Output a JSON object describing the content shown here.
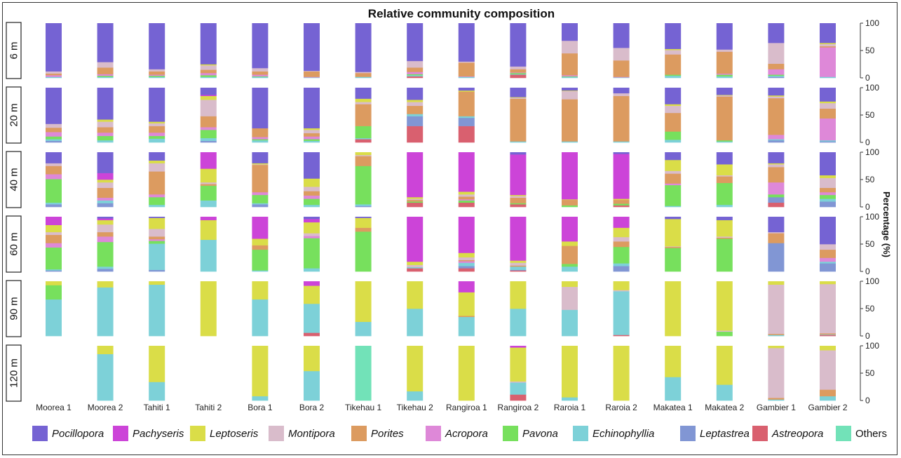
{
  "chart_data": {
    "type": "bar",
    "stacked": true,
    "title": "Relative community composition",
    "ylabel": "Percentage (%)",
    "ylim": [
      0,
      100
    ],
    "yticks": [
      "100",
      "50",
      "0"
    ],
    "legend_position": "bottom",
    "categories": [
      "Moorea 1",
      "Moorea 2",
      "Tahiti 1",
      "Tahiti 2",
      "Bora 1",
      "Bora 2",
      "Tikehau 1",
      "Tikehau 2",
      "Rangiroa 1",
      "Rangiroa 2",
      "Raroia 1",
      "Raroia 2",
      "Makatea 1",
      "Makatea 2",
      "Gambier 1",
      "Gambier 2"
    ],
    "depths": [
      "6 m",
      "20 m",
      "40 m",
      "60 m",
      "90 m",
      "120 m"
    ],
    "stack_order": [
      "Others",
      "Astreopora",
      "Leptastrea",
      "Echinophyllia",
      "Pavona",
      "Acropora",
      "Porites",
      "Montipora",
      "Leptoseris",
      "Pachyseris",
      "Pocillopora"
    ],
    "taxa": [
      {
        "name": "Pocillopora",
        "color": "#7563d3"
      },
      {
        "name": "Pachyseris",
        "color": "#cc44d8"
      },
      {
        "name": "Leptoseris",
        "color": "#dadd48"
      },
      {
        "name": "Montipora",
        "color": "#d9bccb"
      },
      {
        "name": "Porites",
        "color": "#dc9b60"
      },
      {
        "name": "Acropora",
        "color": "#de88d8"
      },
      {
        "name": "Pavona",
        "color": "#77e05d"
      },
      {
        "name": "Echinophyllia",
        "color": "#7dd1d8"
      },
      {
        "name": "Leptastrea",
        "color": "#8196d4"
      },
      {
        "name": "Astreopora",
        "color": "#d9606f"
      },
      {
        "name": "Others",
        "color": "#72e2b8"
      }
    ],
    "data": [
      [
        {
          "Pocillopora": 88,
          "Montipora": 4,
          "Porites": 3,
          "Acropora": 3,
          "Echinophyllia": 2
        },
        {
          "Pocillopora": 71,
          "Montipora": 10,
          "Porites": 12,
          "Acropora": 3,
          "Pavona": 2,
          "Echinophyllia": 2
        },
        {
          "Pocillopora": 84,
          "Montipora": 4,
          "Porites": 6,
          "Acropora": 2,
          "Pavona": 2,
          "Echinophyllia": 2
        },
        {
          "Pocillopora": 75,
          "Leptoseris": 2,
          "Montipora": 8,
          "Porites": 6,
          "Acropora": 4,
          "Pavona": 3,
          "Echinophyllia": 2
        },
        {
          "Pocillopora": 82,
          "Montipora": 6,
          "Porites": 6,
          "Acropora": 3,
          "Pavona": 1,
          "Echinophyllia": 2
        },
        {
          "Pocillopora": 87,
          "Montipora": 1,
          "Porites": 10,
          "Acropora": 1,
          "Echinophyllia": 1
        },
        {
          "Pocillopora": 89,
          "Montipora": 2,
          "Porites": 7,
          "Echinophyllia": 2
        },
        {
          "Pocillopora": 69,
          "Montipora": 12,
          "Porites": 8,
          "Acropora": 4,
          "Pavona": 2,
          "Echinophyllia": 2,
          "Astreopora": 3
        },
        {
          "Pocillopora": 70,
          "Montipora": 2,
          "Porites": 25,
          "Acropora": 1,
          "Echinophyllia": 2
        },
        {
          "Pocillopora": 79,
          "Montipora": 5,
          "Porites": 6,
          "Acropora": 1,
          "Pavona": 2,
          "Echinophyllia": 1,
          "Astreopora": 6
        },
        {
          "Pocillopora": 32,
          "Montipora": 23,
          "Porites": 40,
          "Acropora": 2,
          "Pavona": 1,
          "Echinophyllia": 2
        },
        {
          "Pocillopora": 45,
          "Montipora": 23,
          "Porites": 30,
          "Acropora": 1,
          "Echinophyllia": 1
        },
        {
          "Pocillopora": 47,
          "Leptoseris": 2,
          "Montipora": 8,
          "Porites": 37,
          "Pavona": 2,
          "Echinophyllia": 4
        },
        {
          "Pocillopora": 48,
          "Montipora": 4,
          "Porites": 40,
          "Acropora": 2,
          "Pavona": 3,
          "Echinophyllia": 3
        },
        {
          "Pocillopora": 36,
          "Montipora": 38,
          "Porites": 10,
          "Acropora": 10,
          "Pavona": 2,
          "Echinophyllia": 2,
          "Leptastrea": 2
        },
        {
          "Pocillopora": 36,
          "Leptoseris": 2,
          "Montipora": 4,
          "Porites": 2,
          "Acropora": 54,
          "Echinophyllia": 2
        }
      ],
      [
        {
          "Pocillopora": 66,
          "Montipora": 7,
          "Porites": 8,
          "Acropora": 8,
          "Pavona": 5,
          "Echinophyllia": 3,
          "Leptastrea": 3
        },
        {
          "Pocillopora": 58,
          "Leptoseris": 4,
          "Montipora": 10,
          "Porites": 10,
          "Acropora": 6,
          "Pavona": 8,
          "Echinophyllia": 4
        },
        {
          "Pocillopora": 62,
          "Leptoseris": 3,
          "Montipora": 5,
          "Porites": 12,
          "Acropora": 6,
          "Pavona": 5,
          "Echinophyllia": 7
        },
        {
          "Pocillopora": 13,
          "Pachyseris": 2,
          "Leptoseris": 7,
          "Montipora": 30,
          "Porites": 20,
          "Acropora": 5,
          "Pavona": 15,
          "Echinophyllia": 5,
          "Leptastrea": 3
        },
        {
          "Pocillopora": 74,
          "Porites": 16,
          "Acropora": 4,
          "Pavona": 2,
          "Echinophyllia": 4
        },
        {
          "Pocillopora": 74,
          "Leptoseris": 3,
          "Montipora": 6,
          "Porites": 6,
          "Acropora": 5,
          "Pavona": 3,
          "Echinophyllia": 3
        },
        {
          "Pocillopora": 20,
          "Leptoseris": 6,
          "Montipora": 4,
          "Porites": 40,
          "Pavona": 22,
          "Echinophyllia": 2,
          "Astreopora": 6
        },
        {
          "Pocillopora": 22,
          "Leptoseris": 4,
          "Montipora": 7,
          "Porites": 15,
          "Echinophyllia": 4,
          "Leptastrea": 18,
          "Astreopora": 30
        },
        {
          "Pocillopora": 5,
          "Leptoseris": 2,
          "Porites": 45,
          "Echinophyllia": 3,
          "Leptastrea": 15,
          "Astreopora": 30
        },
        {
          "Pocillopora": 17,
          "Leptoseris": 1,
          "Montipora": 2,
          "Porites": 78,
          "Echinophyllia": 2
        },
        {
          "Pocillopora": 5,
          "Leptoseris": 1,
          "Montipora": 15,
          "Porites": 77,
          "Echinophyllia": 2
        },
        {
          "Pocillopora": 10,
          "Montipora": 5,
          "Porites": 83,
          "Echinophyllia": 2
        },
        {
          "Pocillopora": 30,
          "Leptoseris": 3,
          "Montipora": 13,
          "Porites": 34,
          "Pavona": 15,
          "Echinophyllia": 5
        },
        {
          "Pocillopora": 13,
          "Leptoseris": 1,
          "Montipora": 2,
          "Porites": 80,
          "Pavona": 2,
          "Echinophyllia": 2
        },
        {
          "Pocillopora": 14,
          "Leptoseris": 2,
          "Montipora": 3,
          "Porites": 67,
          "Acropora": 8,
          "Echinophyllia": 2,
          "Leptastrea": 4
        },
        {
          "Pocillopora": 25,
          "Leptoseris": 3,
          "Montipora": 10,
          "Porites": 18,
          "Acropora": 40,
          "Echinophyllia": 2,
          "Leptastrea": 2
        }
      ],
      [
        {
          "Pocillopora": 20,
          "Montipora": 5,
          "Porites": 15,
          "Acropora": 9,
          "Pavona": 43,
          "Echinophyllia": 3,
          "Leptastrea": 5
        },
        {
          "Pocillopora": 38,
          "Pachyseris": 12,
          "Leptoseris": 5,
          "Montipora": 10,
          "Porites": 18,
          "Acropora": 5,
          "Echinophyllia": 5,
          "Leptastrea": 7
        },
        {
          "Pocillopora": 15,
          "Leptoseris": 5,
          "Montipora": 15,
          "Porites": 42,
          "Acropora": 5,
          "Pavona": 14,
          "Echinophyllia": 4
        },
        {
          "Pachyseris": 30,
          "Leptoseris": 25,
          "Montipora": 3,
          "Porites": 3,
          "Pavona": 27,
          "Echinophyllia": 12
        },
        {
          "Pocillopora": 20,
          "Leptoseris": 2,
          "Montipora": 1,
          "Porites": 50,
          "Acropora": 5,
          "Pavona": 15,
          "Echinophyllia": 2,
          "Leptastrea": 5
        },
        {
          "Pocillopora": 48,
          "Leptoseris": 15,
          "Montipora": 8,
          "Porites": 8,
          "Acropora": 6,
          "Pavona": 11,
          "Echinophyllia": 4
        },
        {
          "Leptoseris": 5,
          "Montipora": 2,
          "Porites": 18,
          "Pavona": 70,
          "Echinophyllia": 3,
          "Leptastrea": 2
        },
        {
          "Pachyseris": 82,
          "Leptoseris": 3,
          "Montipora": 2,
          "Porites": 3,
          "Pavona": 2,
          "Astreopora": 8
        },
        {
          "Pachyseris": 72,
          "Leptoseris": 5,
          "Montipora": 4,
          "Porites": 5,
          "Acropora": 2,
          "Pavona": 4,
          "Astreopora": 8
        },
        {
          "Pocillopora": 4,
          "Pachyseris": 74,
          "Leptoseris": 2,
          "Montipora": 3,
          "Porites": 10,
          "Pavona": 2,
          "Astreopora": 5
        },
        {
          "Pachyseris": 86,
          "Leptoseris": 1,
          "Porites": 10,
          "Pavona": 3
        },
        {
          "Pocillopora": 3,
          "Pachyseris": 82,
          "Leptoseris": 2,
          "Porites": 7,
          "Pavona": 3,
          "Astreopora": 3
        },
        {
          "Pocillopora": 14,
          "Leptoseris": 20,
          "Montipora": 5,
          "Porites": 18,
          "Acropora": 3,
          "Pavona": 38,
          "Echinophyllia": 2
        },
        {
          "Pocillopora": 22,
          "Leptoseris": 20,
          "Montipora": 2,
          "Porites": 12,
          "Pavona": 40,
          "Echinophyllia": 4
        },
        {
          "Pocillopora": 20,
          "Leptoseris": 2,
          "Montipora": 5,
          "Porites": 28,
          "Acropora": 22,
          "Pavona": 5,
          "Leptastrea": 10,
          "Astreopora": 8
        },
        {
          "Pocillopora": 42,
          "Leptoseris": 5,
          "Montipora": 18,
          "Porites": 8,
          "Acropora": 5,
          "Pavona": 7,
          "Echinophyllia": 5,
          "Leptastrea": 10
        }
      ],
      [
        {
          "Pachyseris": 15,
          "Leptoseris": 13,
          "Montipora": 5,
          "Porites": 15,
          "Acropora": 8,
          "Pavona": 40,
          "Echinophyllia": 2,
          "Leptastrea": 2
        },
        {
          "Pocillopora": 3,
          "Pachyseris": 3,
          "Leptoseris": 8,
          "Montipora": 14,
          "Porites": 8,
          "Acropora": 10,
          "Pavona": 45,
          "Echinophyllia": 4,
          "Leptastrea": 5
        },
        {
          "Pocillopora": 2,
          "Leptoseris": 20,
          "Montipora": 14,
          "Porites": 5,
          "Acropora": 3,
          "Pavona": 5,
          "Echinophyllia": 48,
          "Leptastrea": 3
        },
        {
          "Pachyseris": 6,
          "Leptoseris": 36,
          "Echinophyllia": 58
        },
        {
          "Pachyseris": 40,
          "Leptoseris": 12,
          "Porites": 8,
          "Pavona": 38,
          "Echinophyllia": 2
        },
        {
          "Pocillopora": 4,
          "Pachyseris": 6,
          "Leptoseris": 20,
          "Montipora": 5,
          "Acropora": 4,
          "Pavona": 55,
          "Echinophyllia": 6
        },
        {
          "Pocillopora": 2,
          "Leptoseris": 18,
          "Porites": 7,
          "Pavona": 73
        },
        {
          "Pachyseris": 82,
          "Leptoseris": 6,
          "Montipora": 4,
          "Echinophyllia": 2,
          "Astreopora": 6
        },
        {
          "Pachyseris": 66,
          "Leptoseris": 8,
          "Montipora": 5,
          "Porites": 2,
          "Acropora": 3,
          "Echinophyllia": 6,
          "Leptastrea": 4,
          "Astreopora": 6
        },
        {
          "Pachyseris": 80,
          "Leptoseris": 4,
          "Montipora": 5,
          "Porites": 2,
          "Echinophyllia": 6,
          "Leptastrea": 1,
          "Astreopora": 2
        },
        {
          "Pachyseris": 45,
          "Leptoseris": 8,
          "Porites": 33,
          "Pavona": 5,
          "Echinophyllia": 9
        },
        {
          "Pachyseris": 20,
          "Leptoseris": 17,
          "Montipora": 8,
          "Porites": 10,
          "Pavona": 30,
          "Echinophyllia": 5,
          "Leptastrea": 10
        },
        {
          "Pocillopora": 4,
          "Leptoseris": 50,
          "Montipora": 1,
          "Porites": 2,
          "Pavona": 43
        },
        {
          "Pocillopora": 6,
          "Leptoseris": 30,
          "Montipora": 2,
          "Porites": 2,
          "Pavona": 60
        },
        {
          "Pocillopora": 28,
          "Montipora": 2,
          "Porites": 18,
          "Leptastrea": 52
        },
        {
          "Pocillopora": 50,
          "Montipora": 10,
          "Porites": 15,
          "Acropora": 7,
          "Echinophyllia": 3,
          "Leptastrea": 15
        }
      ],
      [
        {
          "Leptoseris": 7,
          "Pavona": 26,
          "Echinophyllia": 67
        },
        {
          "Leptoseris": 11,
          "Echinophyllia": 89
        },
        {
          "Leptoseris": 6,
          "Echinophyllia": 94
        },
        {
          "Leptoseris": 100
        },
        {
          "Leptoseris": 33,
          "Echinophyllia": 67
        },
        {
          "Pachyseris": 8,
          "Leptoseris": 33,
          "Echinophyllia": 53,
          "Astreopora": 6
        },
        {
          "Leptoseris": 74,
          "Echinophyllia": 26
        },
        {
          "Leptoseris": 50,
          "Echinophyllia": 50
        },
        {
          "Pachyseris": 20,
          "Leptoseris": 43,
          "Porites": 2,
          "Echinophyllia": 35
        },
        {
          "Leptoseris": 50,
          "Echinophyllia": 50
        },
        {
          "Leptoseris": 10,
          "Montipora": 42,
          "Echinophyllia": 48
        },
        {
          "Leptoseris": 16,
          "Montipora": 2,
          "Echinophyllia": 80,
          "Astreopora": 2
        },
        {
          "Leptoseris": 100
        },
        {
          "Montipora": 2,
          "Leptoseris": 90,
          "Pavona": 8
        },
        {
          "Leptoseris": 6,
          "Montipora": 90,
          "Porites": 2,
          "Echinophyllia": 2
        },
        {
          "Leptoseris": 5,
          "Montipora": 90,
          "Porites": 2,
          "Echinophyllia": 1,
          "Astreopora": 2
        }
      ],
      [
        null,
        {
          "Leptoseris": 15,
          "Echinophyllia": 85
        },
        {
          "Leptoseris": 66,
          "Echinophyllia": 34
        },
        null,
        {
          "Leptoseris": 92,
          "Echinophyllia": 8
        },
        {
          "Leptoseris": 46,
          "Echinophyllia": 54
        },
        {
          "Others": 100
        },
        {
          "Leptoseris": 83,
          "Echinophyllia": 17
        },
        {
          "Leptoseris": 100
        },
        {
          "Pachyseris": 3,
          "Montipora": 2,
          "Leptoseris": 62,
          "Echinophyllia": 22,
          "Astreopora": 11
        },
        {
          "Leptoseris": 94,
          "Echinophyllia": 6
        },
        {
          "Leptoseris": 100
        },
        {
          "Leptoseris": 57,
          "Echinophyllia": 43
        },
        {
          "Leptoseris": 71,
          "Echinophyllia": 29
        },
        {
          "Leptoseris": 4,
          "Montipora": 91,
          "Porites": 3,
          "Echinophyllia": 2
        },
        {
          "Leptoseris": 8,
          "Montipora": 72,
          "Porites": 12,
          "Echinophyllia": 8
        }
      ]
    ]
  }
}
